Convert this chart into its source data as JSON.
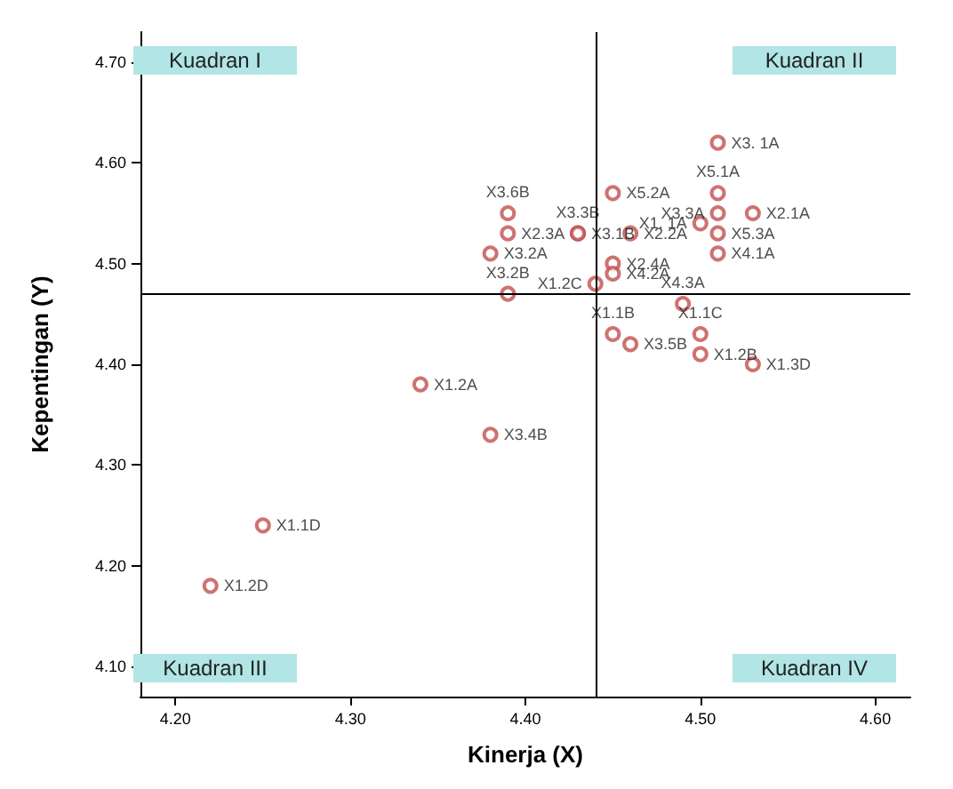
{
  "chart_data": {
    "type": "scatter",
    "xlabel": "Kinerja (X)",
    "ylabel": "Kepentingan (Y)",
    "x": [
      4.22,
      4.25,
      4.34,
      4.38,
      4.38,
      4.39,
      4.39,
      4.39,
      4.43,
      4.43,
      4.44,
      4.45,
      4.45,
      4.45,
      4.46,
      4.5,
      4.51,
      4.51,
      4.51,
      4.51,
      4.51,
      4.53,
      4.49,
      4.45,
      4.46,
      4.5,
      4.5,
      4.53
    ],
    "values": [
      4.18,
      4.24,
      4.38,
      4.33,
      4.51,
      4.53,
      4.55,
      4.47,
      4.53,
      4.53,
      4.48,
      4.57,
      4.5,
      4.49,
      4.53,
      4.54,
      4.62,
      4.57,
      4.55,
      4.53,
      4.51,
      4.55,
      4.46,
      4.43,
      4.42,
      4.43,
      4.41,
      4.4
    ],
    "value_labels": [
      "X1.2D",
      "X1.1D",
      "X1.2A",
      "X3.4B",
      "X3.2A",
      "X2.3A",
      "X3.6B",
      "X3.2B",
      "X3.3B",
      "X3.1B",
      "X1.2C",
      "X5.2A",
      "X2.4A",
      "X4.2A",
      "X2.2A",
      "X1. 1A",
      "X3. 1A",
      "X5.1A",
      "X3.3A",
      "X5.3A",
      "X4.1A",
      "X2.1A",
      "X4.3A",
      "X1.1B",
      "X3.5B",
      "X1.1C",
      "X1.2B",
      "X1.3D"
    ],
    "color": "#c0504d",
    "marker": "circle",
    "xlim": [
      4.18,
      4.62
    ],
    "ylim": [
      4.07,
      4.73
    ],
    "xticks": [
      {
        "value": 4.2,
        "label": "4.20"
      },
      {
        "value": 4.3,
        "label": "4.30"
      },
      {
        "value": 4.4,
        "label": "4.40"
      },
      {
        "value": 4.5,
        "label": "4.50"
      },
      {
        "value": 4.6,
        "label": "4.60"
      }
    ],
    "yticks": [
      {
        "value": 4.1,
        "label": "4.10"
      },
      {
        "value": 4.2,
        "label": "4.20"
      },
      {
        "value": 4.3,
        "label": "4.30"
      },
      {
        "value": 4.4,
        "label": "4.40"
      },
      {
        "value": 4.5,
        "label": "4.50"
      },
      {
        "value": 4.6,
        "label": "4.60"
      },
      {
        "value": 4.7,
        "label": "4.70"
      }
    ],
    "ref_lines": [
      {
        "axis": "x",
        "value": 4.44,
        "color": "#000000"
      },
      {
        "axis": "y",
        "value": 4.47,
        "color": "#000000"
      }
    ],
    "annotations": [
      "Kuadran I",
      "Kuadran II",
      "Kuadran III",
      "Kuadran IV"
    ],
    "grid": false
  }
}
